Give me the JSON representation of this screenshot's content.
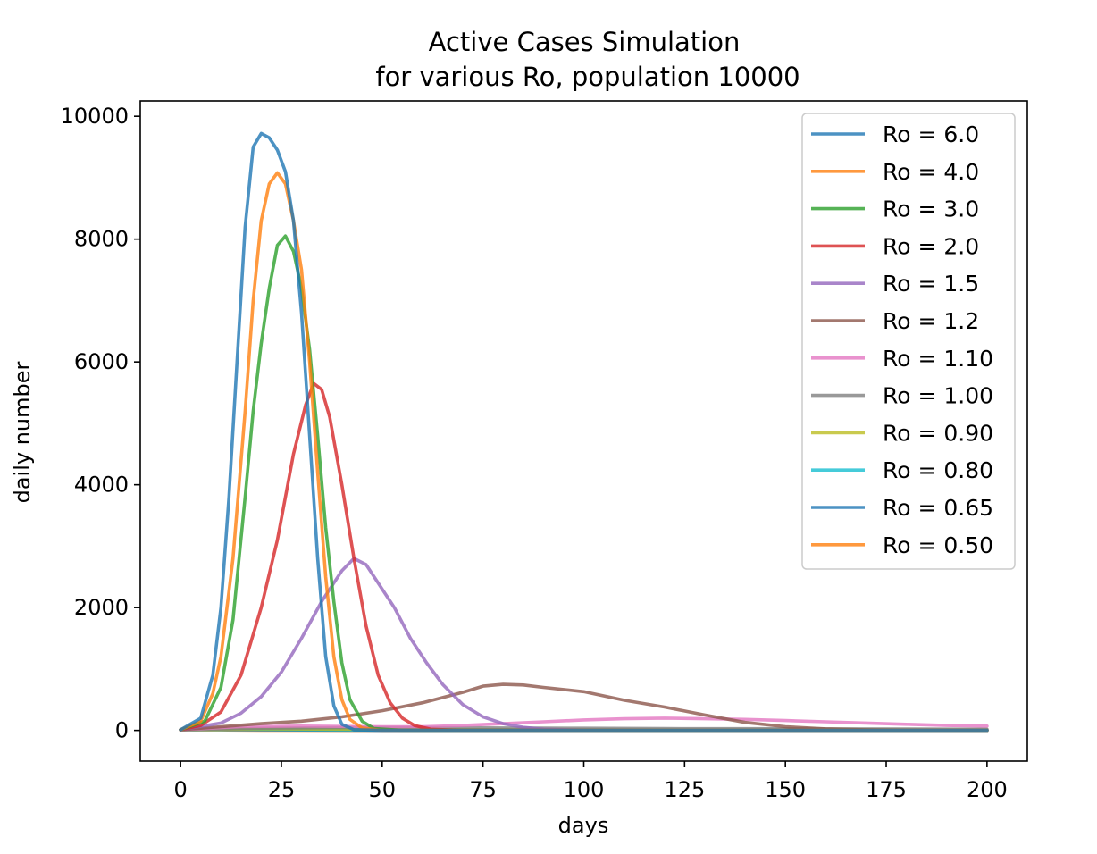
{
  "chart_data": {
    "type": "line",
    "title": "Active Cases Simulation",
    "subtitle": "for various Ro, population 10000",
    "xlabel": "days",
    "ylabel": "daily number",
    "xlim": [
      -10,
      210
    ],
    "ylim": [
      -500,
      10250
    ],
    "xticks": [
      0,
      25,
      50,
      75,
      100,
      125,
      150,
      175,
      200
    ],
    "yticks": [
      0,
      2000,
      4000,
      6000,
      8000,
      10000
    ],
    "grid": false,
    "legend_position": "top-right",
    "series": [
      {
        "name": "Ro = 6.0",
        "color": "#1f77b4",
        "points": [
          [
            0,
            10
          ],
          [
            5,
            200
          ],
          [
            8,
            900
          ],
          [
            10,
            2000
          ],
          [
            12,
            3800
          ],
          [
            14,
            6000
          ],
          [
            16,
            8200
          ],
          [
            18,
            9500
          ],
          [
            20,
            9720
          ],
          [
            22,
            9650
          ],
          [
            24,
            9450
          ],
          [
            26,
            9100
          ],
          [
            28,
            8300
          ],
          [
            30,
            6800
          ],
          [
            32,
            4800
          ],
          [
            34,
            2800
          ],
          [
            36,
            1200
          ],
          [
            38,
            400
          ],
          [
            40,
            100
          ],
          [
            43,
            10
          ],
          [
            50,
            0
          ],
          [
            100,
            0
          ],
          [
            200,
            0
          ]
        ]
      },
      {
        "name": "Ro = 4.0",
        "color": "#ff7f0e",
        "points": [
          [
            0,
            10
          ],
          [
            5,
            150
          ],
          [
            8,
            600
          ],
          [
            10,
            1200
          ],
          [
            13,
            2800
          ],
          [
            16,
            5200
          ],
          [
            18,
            7000
          ],
          [
            20,
            8300
          ],
          [
            22,
            8900
          ],
          [
            24,
            9080
          ],
          [
            26,
            8900
          ],
          [
            28,
            8300
          ],
          [
            30,
            7500
          ],
          [
            32,
            6000
          ],
          [
            34,
            4200
          ],
          [
            36,
            2500
          ],
          [
            38,
            1200
          ],
          [
            40,
            500
          ],
          [
            42,
            180
          ],
          [
            45,
            40
          ],
          [
            50,
            0
          ],
          [
            200,
            0
          ]
        ]
      },
      {
        "name": "Ro = 3.0",
        "color": "#2ca02c",
        "points": [
          [
            0,
            10
          ],
          [
            6,
            150
          ],
          [
            10,
            700
          ],
          [
            13,
            1800
          ],
          [
            16,
            3800
          ],
          [
            18,
            5200
          ],
          [
            20,
            6300
          ],
          [
            22,
            7200
          ],
          [
            24,
            7900
          ],
          [
            26,
            8050
          ],
          [
            28,
            7800
          ],
          [
            30,
            7200
          ],
          [
            32,
            6200
          ],
          [
            34,
            4800
          ],
          [
            36,
            3300
          ],
          [
            38,
            2100
          ],
          [
            40,
            1100
          ],
          [
            42,
            500
          ],
          [
            45,
            150
          ],
          [
            48,
            30
          ],
          [
            55,
            0
          ],
          [
            200,
            0
          ]
        ]
      },
      {
        "name": "Ro = 2.0",
        "color": "#d62728",
        "points": [
          [
            0,
            10
          ],
          [
            5,
            80
          ],
          [
            10,
            300
          ],
          [
            15,
            900
          ],
          [
            20,
            2000
          ],
          [
            24,
            3100
          ],
          [
            28,
            4500
          ],
          [
            31,
            5300
          ],
          [
            33,
            5650
          ],
          [
            35,
            5550
          ],
          [
            37,
            5100
          ],
          [
            40,
            4000
          ],
          [
            43,
            2800
          ],
          [
            46,
            1700
          ],
          [
            49,
            900
          ],
          [
            52,
            450
          ],
          [
            55,
            200
          ],
          [
            58,
            80
          ],
          [
            62,
            20
          ],
          [
            70,
            0
          ],
          [
            200,
            0
          ]
        ]
      },
      {
        "name": "Ro = 1.5",
        "color": "#9467bd",
        "points": [
          [
            0,
            10
          ],
          [
            10,
            120
          ],
          [
            15,
            280
          ],
          [
            20,
            550
          ],
          [
            25,
            950
          ],
          [
            30,
            1500
          ],
          [
            35,
            2100
          ],
          [
            40,
            2600
          ],
          [
            43,
            2800
          ],
          [
            46,
            2700
          ],
          [
            49,
            2400
          ],
          [
            53,
            2000
          ],
          [
            57,
            1500
          ],
          [
            61,
            1100
          ],
          [
            65,
            750
          ],
          [
            70,
            420
          ],
          [
            75,
            220
          ],
          [
            80,
            110
          ],
          [
            85,
            50
          ],
          [
            90,
            20
          ],
          [
            100,
            5
          ],
          [
            120,
            0
          ],
          [
            200,
            0
          ]
        ]
      },
      {
        "name": "Ro = 1.2",
        "color": "#8c564b",
        "points": [
          [
            0,
            10
          ],
          [
            10,
            60
          ],
          [
            20,
            110
          ],
          [
            30,
            150
          ],
          [
            40,
            220
          ],
          [
            50,
            320
          ],
          [
            60,
            450
          ],
          [
            70,
            620
          ],
          [
            75,
            720
          ],
          [
            80,
            750
          ],
          [
            85,
            740
          ],
          [
            90,
            700
          ],
          [
            100,
            630
          ],
          [
            110,
            490
          ],
          [
            120,
            380
          ],
          [
            130,
            250
          ],
          [
            140,
            130
          ],
          [
            150,
            60
          ],
          [
            160,
            25
          ],
          [
            170,
            10
          ],
          [
            180,
            5
          ],
          [
            200,
            0
          ]
        ]
      },
      {
        "name": "Ro = 1.10",
        "color": "#e377c2",
        "points": [
          [
            0,
            10
          ],
          [
            15,
            60
          ],
          [
            30,
            70
          ],
          [
            50,
            60
          ],
          [
            60,
            60
          ],
          [
            70,
            80
          ],
          [
            80,
            110
          ],
          [
            90,
            140
          ],
          [
            100,
            170
          ],
          [
            110,
            190
          ],
          [
            120,
            200
          ],
          [
            130,
            190
          ],
          [
            140,
            180
          ],
          [
            150,
            160
          ],
          [
            160,
            140
          ],
          [
            170,
            120
          ],
          [
            180,
            100
          ],
          [
            190,
            80
          ],
          [
            200,
            70
          ]
        ]
      },
      {
        "name": "Ro = 1.00",
        "color": "#7f7f7f",
        "points": [
          [
            0,
            10
          ],
          [
            20,
            35
          ],
          [
            40,
            45
          ],
          [
            60,
            45
          ],
          [
            80,
            40
          ],
          [
            100,
            35
          ],
          [
            120,
            30
          ],
          [
            140,
            28
          ],
          [
            160,
            25
          ],
          [
            180,
            22
          ],
          [
            200,
            20
          ]
        ]
      },
      {
        "name": "Ro = 0.90",
        "color": "#bcbd22",
        "points": [
          [
            0,
            10
          ],
          [
            20,
            25
          ],
          [
            40,
            20
          ],
          [
            60,
            14
          ],
          [
            80,
            10
          ],
          [
            100,
            7
          ],
          [
            150,
            3
          ],
          [
            200,
            1
          ]
        ]
      },
      {
        "name": "Ro = 0.80",
        "color": "#17becf",
        "points": [
          [
            0,
            10
          ],
          [
            20,
            18
          ],
          [
            40,
            10
          ],
          [
            60,
            5
          ],
          [
            80,
            2
          ],
          [
            100,
            1
          ],
          [
            200,
            0
          ]
        ]
      },
      {
        "name": "Ro = 0.65",
        "color": "#1f77b4",
        "points": [
          [
            0,
            10
          ],
          [
            15,
            12
          ],
          [
            30,
            6
          ],
          [
            50,
            2
          ],
          [
            80,
            0
          ],
          [
            200,
            0
          ]
        ]
      },
      {
        "name": "Ro = 0.50",
        "color": "#ff7f0e",
        "points": [
          [
            0,
            10
          ],
          [
            10,
            8
          ],
          [
            20,
            4
          ],
          [
            40,
            1
          ],
          [
            60,
            0
          ],
          [
            200,
            0
          ]
        ]
      }
    ]
  }
}
